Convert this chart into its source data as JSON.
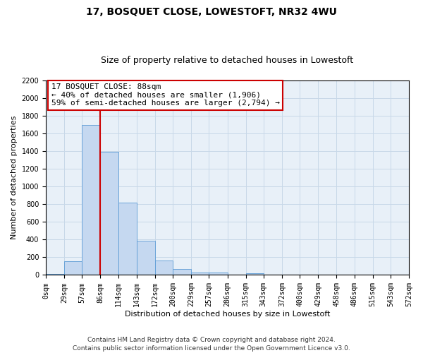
{
  "title": "17, BOSQUET CLOSE, LOWESTOFT, NR32 4WU",
  "subtitle": "Size of property relative to detached houses in Lowestoft",
  "xlabel": "Distribution of detached houses by size in Lowestoft",
  "ylabel": "Number of detached properties",
  "bin_edges": [
    0,
    29,
    57,
    86,
    114,
    143,
    172,
    200,
    229,
    257,
    286,
    315,
    343,
    372,
    400,
    429,
    458,
    486,
    515,
    543,
    572
  ],
  "bar_heights": [
    15,
    155,
    1700,
    1395,
    820,
    385,
    165,
    65,
    30,
    25,
    0,
    20,
    0,
    0,
    0,
    0,
    0,
    0,
    0,
    0
  ],
  "bar_color": "#c5d8f0",
  "bar_edge_color": "#5b9bd5",
  "vline_x": 86,
  "vline_color": "#cc0000",
  "ylim": [
    0,
    2200
  ],
  "yticks": [
    0,
    200,
    400,
    600,
    800,
    1000,
    1200,
    1400,
    1600,
    1800,
    2000,
    2200
  ],
  "xtick_labels": [
    "0sqm",
    "29sqm",
    "57sqm",
    "86sqm",
    "114sqm",
    "143sqm",
    "172sqm",
    "200sqm",
    "229sqm",
    "257sqm",
    "286sqm",
    "315sqm",
    "343sqm",
    "372sqm",
    "400sqm",
    "429sqm",
    "458sqm",
    "486sqm",
    "515sqm",
    "543sqm",
    "572sqm"
  ],
  "annotation_title": "17 BOSQUET CLOSE: 88sqm",
  "annotation_line1": "← 40% of detached houses are smaller (1,906)",
  "annotation_line2": "59% of semi-detached houses are larger (2,794) →",
  "annotation_box_color": "#ffffff",
  "annotation_box_edge": "#cc0000",
  "footer_line1": "Contains HM Land Registry data © Crown copyright and database right 2024.",
  "footer_line2": "Contains public sector information licensed under the Open Government Licence v3.0.",
  "background_color": "#ffffff",
  "plot_bg_color": "#e8f0f8",
  "grid_color": "#c8d8e8",
  "title_fontsize": 10,
  "subtitle_fontsize": 9,
  "axis_label_fontsize": 8,
  "tick_fontsize": 7,
  "annotation_fontsize": 8,
  "footer_fontsize": 6.5
}
